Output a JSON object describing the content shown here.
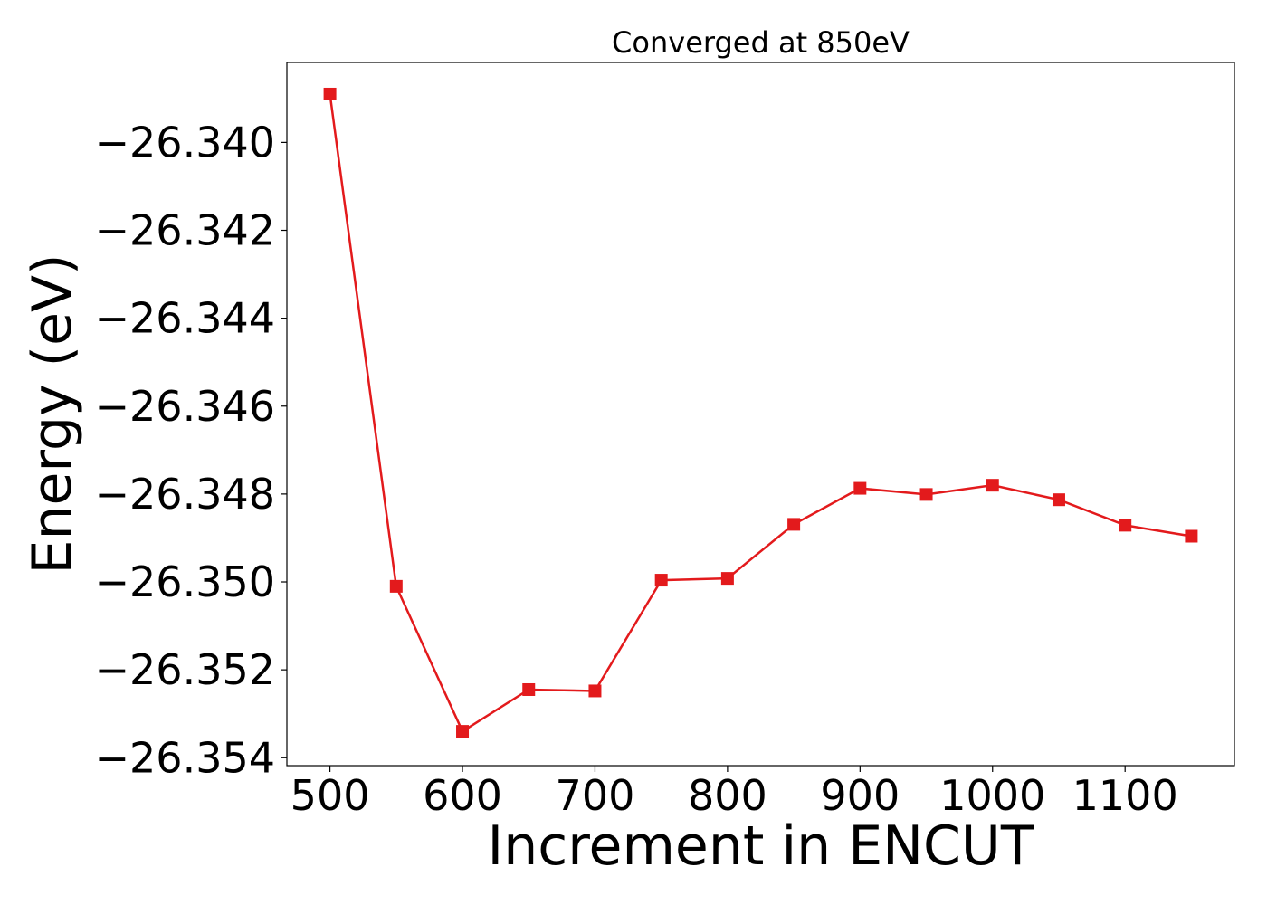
{
  "chart_data": {
    "type": "line",
    "title": "Converged at 850eV",
    "xlabel": "Increment in ENCUT",
    "ylabel": "Energy (eV)",
    "xlim": [
      467.5,
      1182.5
    ],
    "ylim": [
      -26.35418,
      -26.33818
    ],
    "x_ticks": [
      500,
      600,
      700,
      800,
      900,
      1000,
      1100
    ],
    "x_tick_labels": [
      "500",
      "600",
      "700",
      "800",
      "900",
      "1000",
      "1100"
    ],
    "y_ticks": [
      -26.34,
      -26.342,
      -26.344,
      -26.346,
      -26.348,
      -26.35,
      -26.352,
      -26.354
    ],
    "y_tick_labels": [
      "−26.340",
      "−26.342",
      "−26.344",
      "−26.346",
      "−26.348",
      "−26.350",
      "−26.352",
      "−26.354"
    ],
    "grid": false,
    "series": [
      {
        "color": "#e31a1c",
        "marker": "square",
        "x": [
          500,
          550,
          600,
          650,
          700,
          750,
          800,
          850,
          900,
          950,
          1000,
          1050,
          1100,
          1150
        ],
        "y": [
          -26.3389,
          -26.3501,
          -26.3534,
          -26.35245,
          -26.35248,
          -26.34996,
          -26.34992,
          -26.34869,
          -26.34787,
          -26.34801,
          -26.3478,
          -26.34813,
          -26.34871,
          -26.34896
        ]
      }
    ]
  }
}
